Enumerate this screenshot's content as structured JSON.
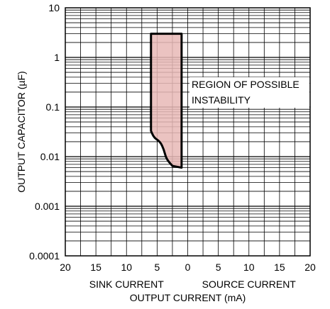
{
  "chart_data": {
    "type": "area",
    "ylabel": "OUTPUT CAPACITOR (µF)",
    "xlabel": "OUTPUT CURRENT (mA)",
    "x_sublabels": [
      "SINK CURRENT",
      "SOURCE CURRENT"
    ],
    "y_scale": "log",
    "ylim": [
      0.0001,
      10
    ],
    "xlim": [
      -20,
      20
    ],
    "y_ticks": [
      {
        "value": 10,
        "label": "10"
      },
      {
        "value": 1,
        "label": "1"
      },
      {
        "value": 0.1,
        "label": "0.1"
      },
      {
        "value": 0.01,
        "label": "0.01"
      },
      {
        "value": 0.001,
        "label": "0.001"
      },
      {
        "value": 0.0001,
        "label": "0.0001"
      }
    ],
    "x_ticks": [
      {
        "value": -20,
        "label": "20"
      },
      {
        "value": -15,
        "label": "15"
      },
      {
        "value": -10,
        "label": "10"
      },
      {
        "value": -5,
        "label": "5"
      },
      {
        "value": 0,
        "label": "0"
      },
      {
        "value": 5,
        "label": "5"
      },
      {
        "value": 10,
        "label": "10"
      },
      {
        "value": 15,
        "label": "15"
      },
      {
        "value": 20,
        "label": "20"
      }
    ],
    "grid": true,
    "region": {
      "name": "REGION OF POSSIBLE INSTABILITY",
      "label_lines": [
        "REGION OF POSSIBLE",
        "INSTABILITY"
      ],
      "fill_color": "#e8b8b6",
      "edge_color": "#000000",
      "boundary": [
        {
          "x": -6,
          "y": 3
        },
        {
          "x": -1,
          "y": 3
        },
        {
          "x": -1,
          "y": 0.006
        },
        {
          "x": -2.5,
          "y": 0.0065
        },
        {
          "x": -3.5,
          "y": 0.009
        },
        {
          "x": -3.9,
          "y": 0.014
        },
        {
          "x": -4.5,
          "y": 0.02
        },
        {
          "x": -5.5,
          "y": 0.024
        },
        {
          "x": -6,
          "y": 0.033
        }
      ]
    }
  }
}
